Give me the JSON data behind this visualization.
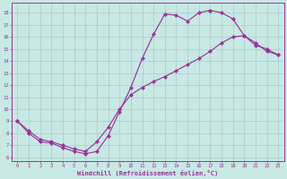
{
  "bg_color": "#c8e8e4",
  "line_color": "#993399",
  "grid_color": "#aacccc",
  "xlabel": "Windchill (Refroidissement éolien,°C)",
  "xlim": [
    -0.5,
    23.5
  ],
  "ylim": [
    5.7,
    18.8
  ],
  "curve1_x": [
    0,
    1,
    2,
    3,
    4,
    5,
    6,
    7,
    8,
    9,
    10,
    11,
    12,
    13,
    14,
    15,
    16,
    17
  ],
  "curve1_y": [
    9.0,
    8.0,
    7.3,
    7.2,
    6.8,
    6.5,
    6.3,
    6.5,
    7.8,
    9.8,
    11.8,
    14.2,
    16.2,
    17.9,
    17.8,
    17.3,
    18.0,
    18.2
  ],
  "curve2_x": [
    0,
    1,
    2,
    3,
    4,
    5,
    6,
    7,
    8,
    9,
    10,
    11,
    12,
    13,
    14,
    15,
    16,
    17,
    18,
    19,
    20,
    21,
    22,
    23
  ],
  "curve2_y": [
    9.0,
    8.2,
    7.5,
    7.3,
    7.0,
    6.7,
    6.5,
    7.3,
    8.5,
    10.0,
    11.2,
    11.8,
    12.3,
    12.7,
    13.2,
    13.7,
    14.2,
    14.8,
    15.5,
    16.0,
    16.1,
    15.5,
    14.8,
    14.5
  ],
  "curve3_x": [
    17,
    18,
    19,
    20,
    21,
    22,
    23
  ],
  "curve3_y": [
    18.2,
    18.0,
    17.5,
    16.1,
    15.3,
    15.0,
    14.5
  ]
}
